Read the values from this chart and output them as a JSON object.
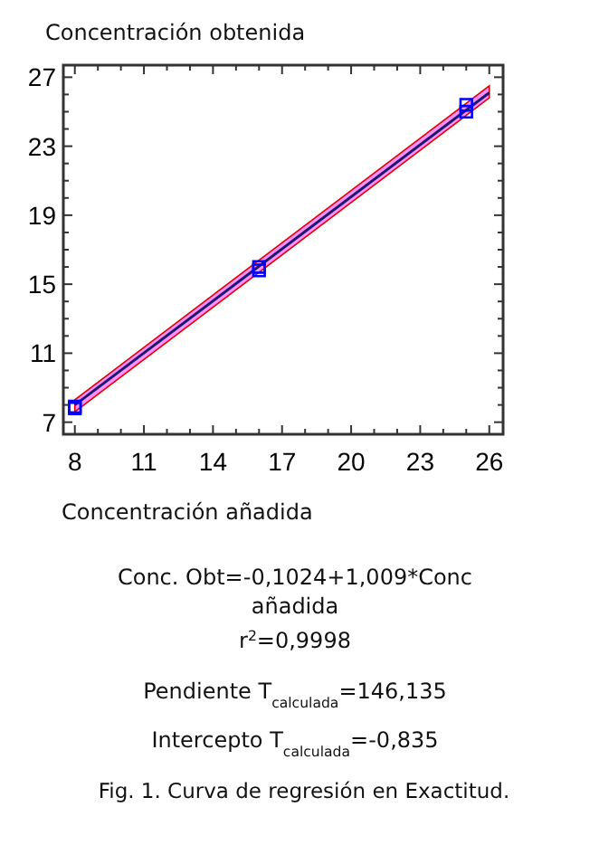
{
  "chart_data": {
    "type": "scatter",
    "ylabel": "Concentración obtenida",
    "xlabel": "Concentración añadida",
    "xlim": [
      7.5,
      26.6
    ],
    "ylim": [
      6.3,
      27.7
    ],
    "xticks": [
      8,
      {
        "value": 9,
        "label": null
      },
      {
        "value": 10,
        "label": null
      },
      11,
      {
        "value": 12,
        "label": null
      },
      {
        "value": 13,
        "label": null
      },
      14,
      {
        "value": 15,
        "label": null
      },
      {
        "value": 16,
        "label": null
      },
      17,
      {
        "value": 18,
        "label": null
      },
      {
        "value": 19,
        "label": null
      },
      20,
      {
        "value": 21,
        "label": null
      },
      {
        "value": 22,
        "label": null
      },
      23,
      {
        "value": 24,
        "label": null
      },
      {
        "value": 25,
        "label": null
      },
      26
    ],
    "yticks": [
      7,
      {
        "value": 8,
        "label": null
      },
      {
        "value": 9,
        "label": null
      },
      {
        "value": 10,
        "label": null
      },
      11,
      {
        "value": 12,
        "label": null
      },
      {
        "value": 13,
        "label": null
      },
      {
        "value": 14,
        "label": null
      },
      15,
      {
        "value": 16,
        "label": null
      },
      {
        "value": 17,
        "label": null
      },
      {
        "value": 18,
        "label": null
      },
      19,
      {
        "value": 20,
        "label": null
      },
      {
        "value": 21,
        "label": null
      },
      {
        "value": 22,
        "label": null
      },
      23,
      {
        "value": 24,
        "label": null
      },
      {
        "value": 25,
        "label": null
      },
      {
        "value": 26,
        "label": null
      },
      27
    ],
    "grid": false,
    "marker": "square",
    "series": [
      {
        "type": "line",
        "color": "#1a1a6e",
        "x": [
          8,
          26
        ],
        "values": [
          8.0,
          26.1
        ],
        "lower": [
          7.6,
          25.8
        ],
        "upper": [
          8.3,
          26.5
        ],
        "line_style": "solid",
        "marker": "none"
      },
      {
        "color": "#0000ff",
        "x": [
          8,
          8,
          16,
          16,
          25,
          25
        ],
        "values": [
          7.9,
          7.8,
          16.0,
          15.8,
          25.4,
          25.0
        ]
      }
    ],
    "annotations": [
      "Conc. Obt=-0,1024+1,009*Conc añadida",
      "r$^{2}$=0,9998",
      "Pendiente T$_{calculada}$=146,135",
      "Intercepto T$_{calculada}$=-0,835",
      "Fig. 1.  Curva de regresión en Exactitud."
    ]
  }
}
